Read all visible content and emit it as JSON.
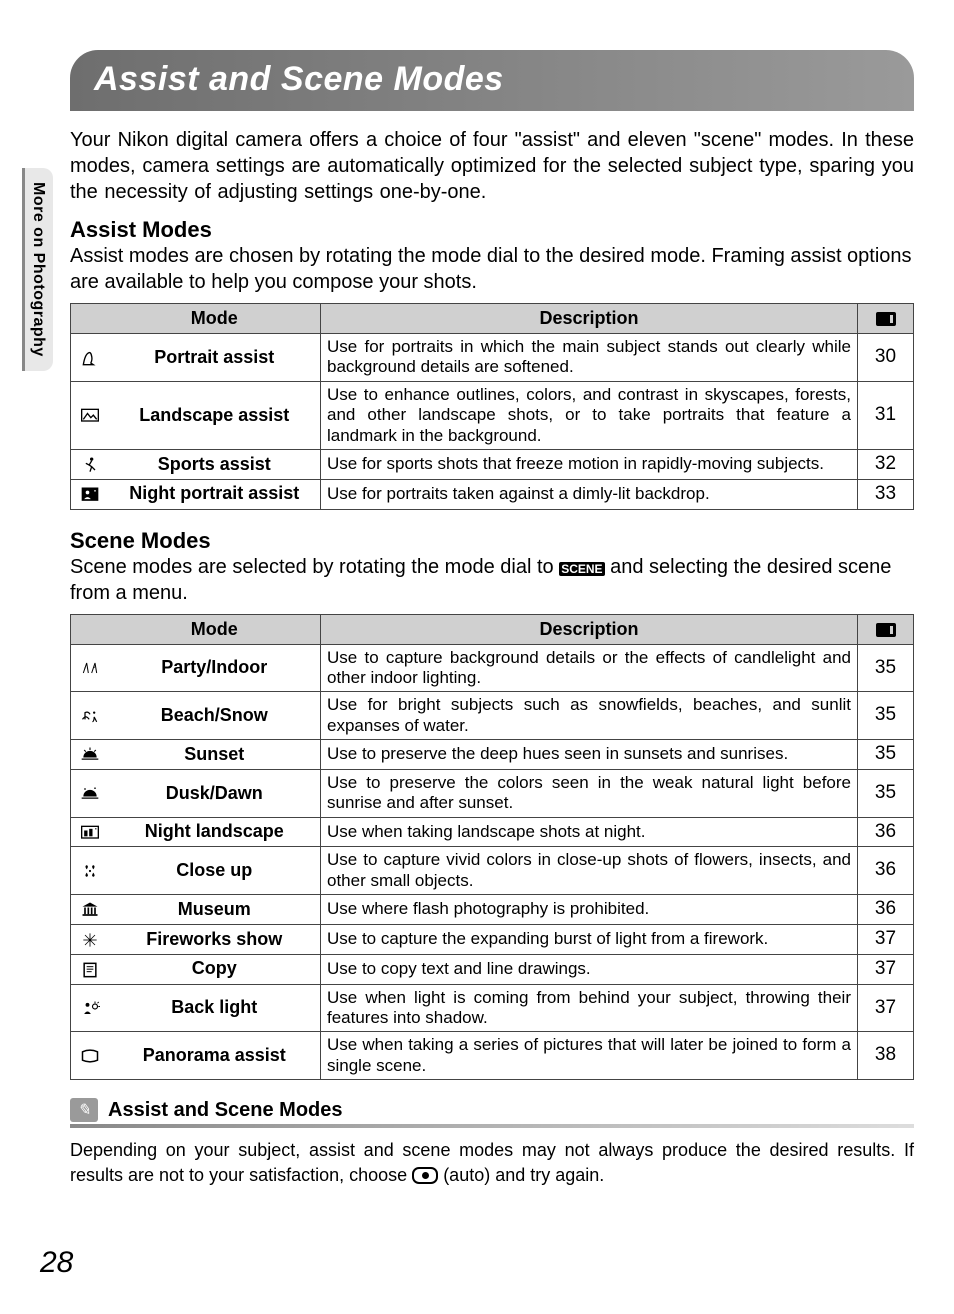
{
  "sidebar_tab": "More on Photography",
  "title": "Assist and Scene Modes",
  "intro": "Your Nikon digital camera offers a choice of four \"assist\" and eleven \"scene\" modes. In these modes, camera settings are automatically optimized for the selected subject type, sparing you the necessity of adjusting settings one-by-one.",
  "assist": {
    "heading": "Assist Modes",
    "desc": "Assist modes are chosen by rotating the mode dial to the desired mode. Framing assist options are available to help you compose your shots.",
    "cols": {
      "mode": "Mode",
      "desc": "Description"
    },
    "rows": [
      {
        "icon": "portrait",
        "mode": "Portrait assist",
        "desc": "Use for portraits in which the main subject stands out clearly while background details are softened.",
        "page": "30"
      },
      {
        "icon": "landscape",
        "mode": "Landscape assist",
        "desc": "Use to enhance outlines, colors, and contrast in skyscapes, forests, and other landscape shots, or to take portraits that feature a landmark in the background.",
        "page": "31"
      },
      {
        "icon": "sports",
        "mode": "Sports assist",
        "desc": "Use for sports shots that freeze motion in rapidly-moving subjects.",
        "page": "32"
      },
      {
        "icon": "night-portrait",
        "mode": "Night portrait assist",
        "desc": "Use for portraits taken against a dimly-lit backdrop.",
        "page": "33"
      }
    ]
  },
  "scene": {
    "heading": "Scene Modes",
    "desc_pre": "Scene modes are selected by rotating the mode dial to ",
    "desc_post": " and selecting the desired scene from a menu.",
    "scene_label": "SCENE",
    "cols": {
      "mode": "Mode",
      "desc": "Description"
    },
    "rows": [
      {
        "icon": "party",
        "mode": "Party/Indoor",
        "desc": "Use to capture background details or the effects of candlelight and other indoor lighting.",
        "page": "35"
      },
      {
        "icon": "beach",
        "mode": "Beach/Snow",
        "desc": "Use for bright subjects such as snowfields, beaches, and sunlit expanses of water.",
        "page": "35"
      },
      {
        "icon": "sunset",
        "mode": "Sunset",
        "desc": "Use to preserve the deep hues seen in sunsets and sunrises.",
        "page": "35"
      },
      {
        "icon": "dusk",
        "mode": "Dusk/Dawn",
        "desc": "Use to preserve the colors seen in the weak natural light before sunrise and after sunset.",
        "page": "35"
      },
      {
        "icon": "night-landscape",
        "mode": "Night landscape",
        "desc": "Use when taking landscape shots at night.",
        "page": "36"
      },
      {
        "icon": "closeup",
        "mode": "Close up",
        "desc": "Use to capture vivid colors in close-up shots of flowers, insects, and other small objects.",
        "page": "36"
      },
      {
        "icon": "museum",
        "mode": "Museum",
        "desc": "Use where flash photography is prohibited.",
        "page": "36"
      },
      {
        "icon": "fireworks",
        "mode": "Fireworks show",
        "desc": "Use to capture the expanding burst of light from a firework.",
        "page": "37"
      },
      {
        "icon": "copy",
        "mode": "Copy",
        "desc": "Use to copy text and line drawings.",
        "page": "37"
      },
      {
        "icon": "backlight",
        "mode": "Back light",
        "desc": "Use when light is coming from behind your subject, throwing their features into shadow.",
        "page": "37"
      },
      {
        "icon": "panorama",
        "mode": "Panorama assist",
        "desc": "Use when taking a series of pictures that will later be joined to form a single scene.",
        "page": "38"
      }
    ]
  },
  "note": {
    "title": "Assist and Scene Modes",
    "text_pre": "Depending on your subject, assist and scene modes may not always produce the desired results. If results are not to your satisfaction, choose ",
    "text_post": " (auto) and try again."
  },
  "page_number": "28",
  "colors": {
    "header_bg": "#7a7a7a",
    "th_bg": "#d0d0d0",
    "border": "#444444",
    "sidebar_bg": "#e8e8e8"
  }
}
